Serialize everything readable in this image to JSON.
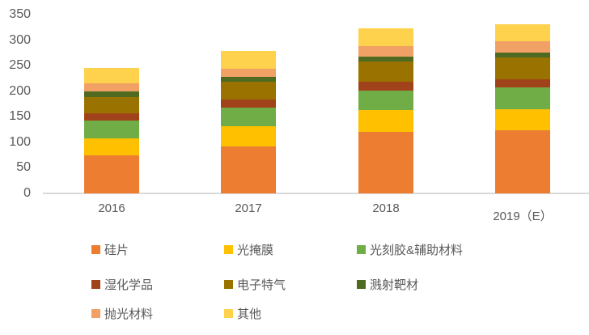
{
  "chart_data": {
    "type": "bar",
    "stacked": true,
    "title": "",
    "xlabel": "",
    "ylabel": "",
    "categories": [
      "2016",
      "2017",
      "2018",
      "2019（E）"
    ],
    "series": [
      {
        "name": "硅片",
        "color": "#ED7D31",
        "values": [
          75,
          91,
          120,
          124
        ]
      },
      {
        "name": "光掩膜",
        "color": "#FFC000",
        "values": [
          32,
          40,
          43,
          41
        ]
      },
      {
        "name": "光刻胶&辅助材料",
        "color": "#70AD47",
        "values": [
          35,
          37,
          38,
          42
        ]
      },
      {
        "name": "湿化学品",
        "color": "#A1431A",
        "values": [
          15,
          16,
          17,
          16
        ]
      },
      {
        "name": "电子特气",
        "color": "#9A7200",
        "values": [
          32,
          34,
          40,
          43
        ]
      },
      {
        "name": "溅射靶材",
        "color": "#4E6B21",
        "values": [
          10,
          10,
          10,
          10
        ]
      },
      {
        "name": "抛光材料",
        "color": "#F1A165",
        "values": [
          17,
          16,
          21,
          22
        ]
      },
      {
        "name": "其他",
        "color": "#FFD24D",
        "values": [
          29,
          34,
          34,
          33
        ]
      }
    ],
    "totals": [
      245,
      278,
      323,
      331
    ],
    "ylim": [
      0,
      350
    ],
    "yticks": [
      0,
      50,
      100,
      150,
      200,
      250,
      300,
      350
    ],
    "grid": false,
    "legend_position": "bottom",
    "legend_columns": 3
  },
  "style": {
    "tick_label_color": "#595959",
    "axis_line_color": "#D9D9D9",
    "background": "#FFFFFF"
  }
}
